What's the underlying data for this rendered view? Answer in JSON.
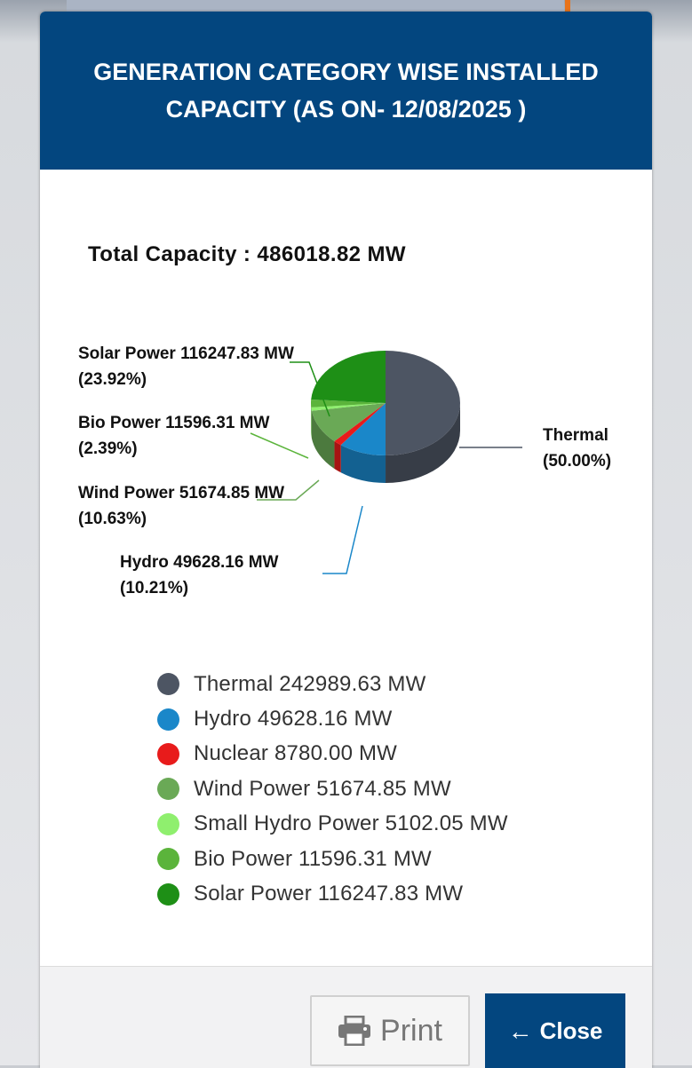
{
  "modal": {
    "title": "GENERATION CATEGORY WISE INSTALLED CAPACITY (AS ON- 12/08/2025 )",
    "total_label": "Total Capacity : 486018.82 MW"
  },
  "buttons": {
    "print_label": "Print",
    "print_icon": "printer-icon",
    "close_label": "Close",
    "close_icon": "arrow-left-icon"
  },
  "chart_data": {
    "type": "pie",
    "title": "GENERATION CATEGORY WISE INSTALLED CAPACITY (AS ON- 12/08/2025 )",
    "total": "Total Capacity : 486018.82 MW",
    "unit": "MW",
    "legend_position": "bottom",
    "slices": [
      {
        "name": "Thermal",
        "value": 242989.63,
        "color": "#4d5563",
        "legend": "Thermal 242989.63 MW",
        "label_lines": [
          "Thermal",
          "(50.00%)"
        ]
      },
      {
        "name": "Hydro",
        "value": 49628.16,
        "color": "#1a87c9",
        "legend": "Hydro 49628.16 MW",
        "label_lines": [
          "Hydro 49628.16 MW",
          "(10.21%)"
        ]
      },
      {
        "name": "Nuclear",
        "value": 8780.0,
        "color": "#e81b1b",
        "legend": "Nuclear 8780.00 MW",
        "label_lines": []
      },
      {
        "name": "Wind Power",
        "value": 51674.85,
        "color": "#6aa956",
        "legend": "Wind Power 51674.85 MW",
        "label_lines": [
          "Wind Power 51674.85 MW",
          "(10.63%)"
        ]
      },
      {
        "name": "Small Hydro Power",
        "value": 5102.05,
        "color": "#8fef6e",
        "legend": "Small Hydro Power 5102.05 MW",
        "label_lines": []
      },
      {
        "name": "Bio Power",
        "value": 11596.31,
        "color": "#5bb43b",
        "legend": "Bio Power 11596.31 MW",
        "label_lines": [
          "Bio Power 11596.31 MW",
          "(2.39%)"
        ]
      },
      {
        "name": "Solar Power",
        "value": 116247.83,
        "color": "#1e8f16",
        "legend": "Solar Power 116247.83 MW",
        "label_lines": [
          "Solar Power 116247.83 MW",
          "(23.92%)"
        ]
      }
    ]
  }
}
